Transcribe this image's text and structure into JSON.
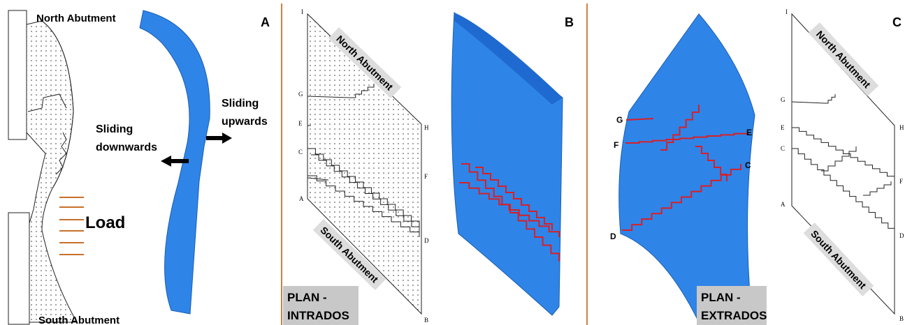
{
  "panel_a": {
    "label": "A",
    "north_label": "North Abutment",
    "south_label": "South Abutment",
    "load_label": "Load",
    "sliding_up": [
      "Sliding",
      "upwards"
    ],
    "sliding_down": [
      "Sliding",
      "downwards"
    ]
  },
  "plan_intrados": {
    "north_label": "North Abutment",
    "south_label": "South Abutment",
    "points": [
      "I",
      "G",
      "E",
      "C",
      "A",
      "H",
      "F",
      "D",
      "B"
    ],
    "caption": [
      "PLAN -",
      "INTRADOS"
    ]
  },
  "panel_b": {
    "label": "B"
  },
  "plan_extrados": {
    "points": [
      "G",
      "F",
      "E",
      "C",
      "D"
    ],
    "caption": [
      "PLAN -",
      "EXTRADOS"
    ]
  },
  "panel_c": {
    "label": "C",
    "north_label": "North Abutment",
    "south_label": "South Abutment",
    "points": [
      "I",
      "G",
      "E",
      "C",
      "A",
      "H",
      "F",
      "D",
      "B"
    ]
  }
}
